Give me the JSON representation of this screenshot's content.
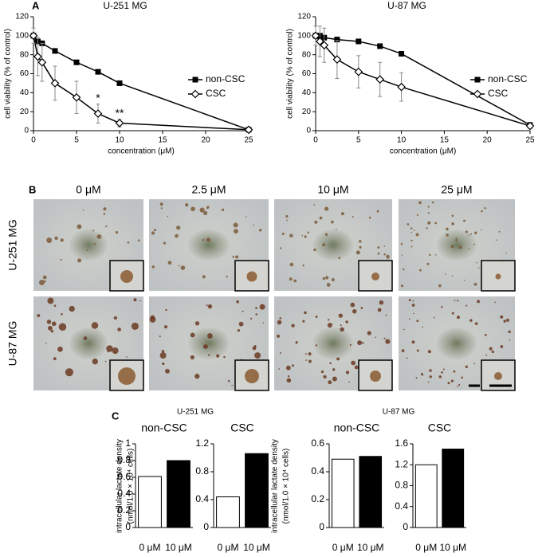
{
  "panel_labels": [
    "A",
    "B",
    "C"
  ],
  "chart_data": [
    {
      "type": "line",
      "title": "U-251 MG",
      "xlabel": "concentration (μM)",
      "ylabel": "cell viability (% of control)",
      "x": [
        0,
        0.5,
        1,
        2.5,
        5,
        7.5,
        10,
        25
      ],
      "xlim": [
        0,
        25
      ],
      "xticks": [
        0,
        5,
        10,
        15,
        20,
        25
      ],
      "ylim": [
        0,
        120
      ],
      "yticks": [
        0,
        20,
        40,
        60,
        80,
        100,
        120
      ],
      "series": [
        {
          "name": "non-CSC",
          "color": "#000000",
          "marker": "square",
          "values": [
            100,
            94,
            92,
            84,
            72,
            62,
            50,
            1
          ]
        },
        {
          "name": "CSC",
          "color": "#000000",
          "marker": "diamond",
          "values": [
            100,
            78,
            72,
            50,
            35,
            18,
            8,
            1
          ],
          "errors": [
            8,
            20,
            20,
            18,
            17,
            10,
            4,
            1
          ]
        }
      ],
      "annotations": [
        {
          "text": "*",
          "x": 7.5
        },
        {
          "text": "**",
          "x": 10
        }
      ]
    },
    {
      "type": "line",
      "title": "U-87 MG",
      "xlabel": "concentration (μM)",
      "ylabel": "cell viability (% of control)",
      "x": [
        0,
        0.5,
        1,
        2.5,
        5,
        7.5,
        10,
        25
      ],
      "xlim": [
        0,
        25
      ],
      "xticks": [
        0,
        5,
        10,
        15,
        20,
        25
      ],
      "ylim": [
        0,
        120
      ],
      "yticks": [
        0,
        20,
        40,
        60,
        80,
        100,
        120
      ],
      "series": [
        {
          "name": "non-CSC",
          "color": "#000000",
          "marker": "square",
          "values": [
            100,
            100,
            98,
            96,
            94,
            89,
            81,
            6
          ]
        },
        {
          "name": "CSC",
          "color": "#000000",
          "marker": "diamond",
          "values": [
            100,
            94,
            90,
            75,
            62,
            54,
            46,
            5
          ],
          "errors": [
            10,
            16,
            18,
            20,
            17,
            18,
            15,
            3
          ]
        }
      ]
    },
    {
      "type": "bar",
      "title": "non-CSC",
      "categories": [
        "0 μM",
        "10 μM"
      ],
      "values": [
        0.61,
        0.8
      ],
      "colors": [
        "#ffffff",
        "#000000"
      ],
      "ylim": [
        0,
        1
      ],
      "yticks": [
        0,
        0.2,
        0.4,
        0.6,
        0.8,
        1
      ]
    },
    {
      "type": "bar",
      "title": "CSC",
      "categories": [
        "0 μM",
        "10 μM"
      ],
      "values": [
        0.44,
        1.06
      ],
      "colors": [
        "#ffffff",
        "#000000"
      ],
      "ylim": [
        0,
        1.2
      ],
      "yticks": [
        0,
        0.4,
        0.8,
        1.2
      ]
    },
    {
      "type": "bar",
      "title": "non-CSC",
      "categories": [
        "0 μM",
        "10 μM"
      ],
      "values": [
        0.49,
        0.51
      ],
      "colors": [
        "#ffffff",
        "#000000"
      ],
      "ylim": [
        0,
        0.6
      ],
      "yticks": [
        0,
        0.2,
        0.4,
        0.6
      ]
    },
    {
      "type": "bar",
      "title": "CSC",
      "categories": [
        "0 μM",
        "10 μM"
      ],
      "values": [
        1.2,
        1.5
      ],
      "colors": [
        "#ffffff",
        "#000000"
      ],
      "ylim": [
        0,
        1.6
      ],
      "yticks": [
        0,
        0.4,
        0.8,
        1.2,
        1.6
      ]
    }
  ],
  "micrographs": {
    "columns": [
      "0 μM",
      "2.5 μM",
      "10 μM",
      "25 μM"
    ],
    "rows": [
      "U-251 MG",
      "U-87 MG"
    ]
  },
  "panel_c": {
    "groups": [
      "U-251 MG",
      "U-87 MG"
    ],
    "ylabel": [
      "intracellular lactate density",
      "(nmol/1.0 × 10⁴ cells)"
    ]
  }
}
